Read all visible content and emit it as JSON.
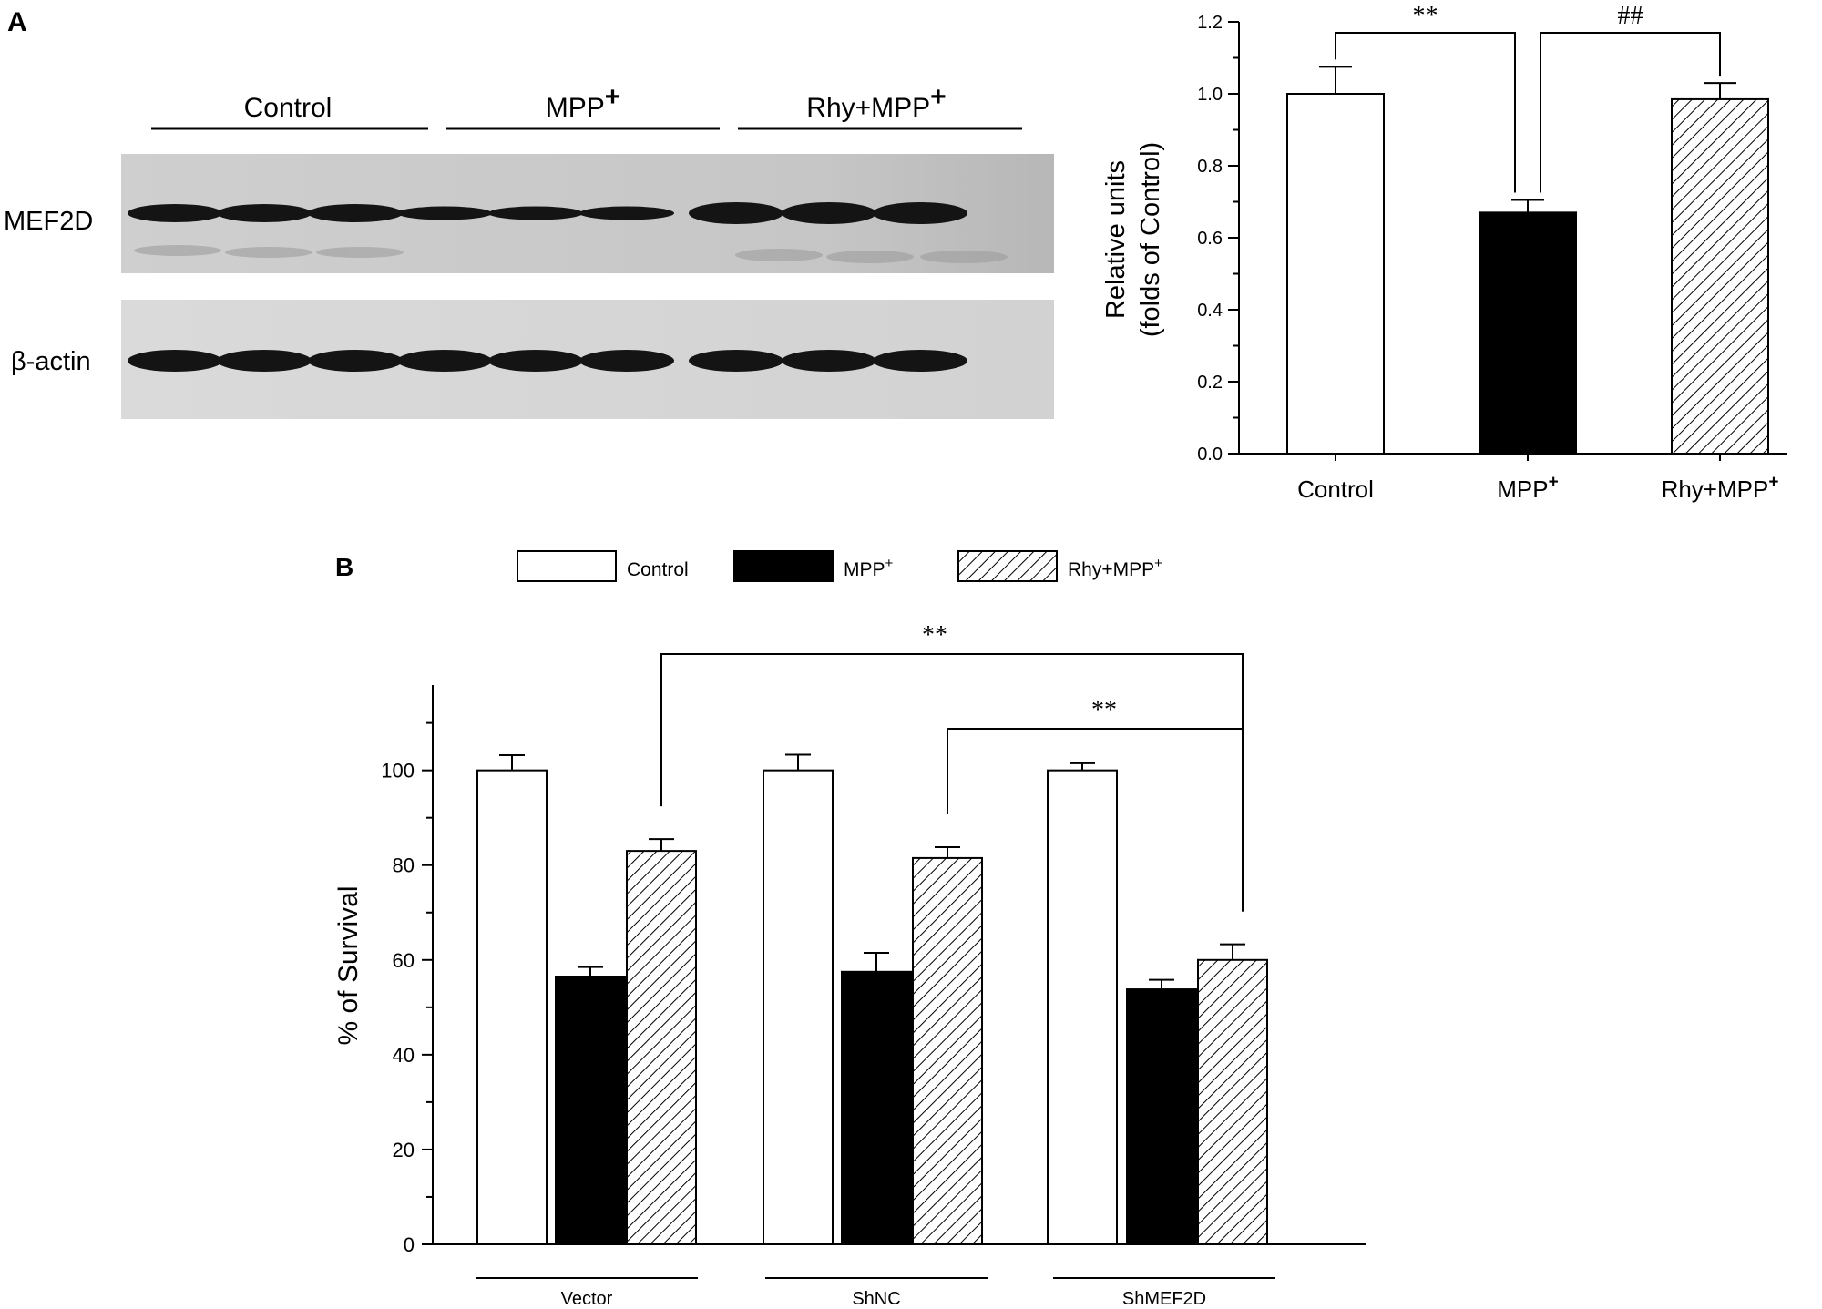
{
  "panel_a": {
    "label": "A",
    "blot": {
      "groups": [
        {
          "label": "Control",
          "sup": ""
        },
        {
          "label": "MPP",
          "sup": "+"
        },
        {
          "label": "Rhy+MPP",
          "sup": "+"
        }
      ],
      "rows": [
        {
          "label": "MEF2D",
          "lanes_per_group": 3
        },
        {
          "label": "β-actin",
          "lanes_per_group": 3
        }
      ]
    }
  },
  "panel_b": {
    "label": "B",
    "legend": [
      {
        "label": "Control",
        "sup": ""
      },
      {
        "label": "MPP",
        "sup": "+"
      },
      {
        "label": "Rhy+MPP",
        "sup": "+"
      }
    ]
  },
  "chart_data": [
    {
      "id": "panel-a-bar",
      "type": "bar",
      "categories": [
        {
          "label": "Control",
          "sup": ""
        },
        {
          "label": "MPP",
          "sup": "+"
        },
        {
          "label": "Rhy+MPP",
          "sup": "+"
        }
      ],
      "values": [
        1.0,
        0.67,
        0.985
      ],
      "errors": [
        0.075,
        0.035,
        0.045
      ],
      "fills": [
        "white",
        "black",
        "hatch"
      ],
      "ylabel_lines": [
        "Relative units",
        "(folds of Control)"
      ],
      "ylim": [
        0,
        1.2
      ],
      "yticks": [
        "0.0",
        "0.2",
        "0.4",
        "0.6",
        "0.8",
        "1.0",
        "1.2"
      ],
      "annotations": [
        {
          "text": "**",
          "from": 0,
          "to": 1
        },
        {
          "text": "##",
          "from": 1,
          "to": 2
        }
      ]
    },
    {
      "id": "panel-b-bar",
      "type": "bar",
      "groups": [
        "Vector",
        "ShNC",
        "ShMEF2D"
      ],
      "series": [
        {
          "name": "Control",
          "values": [
            100,
            100,
            100
          ],
          "errors": [
            3.2,
            3.3,
            1.5
          ],
          "fill": "white"
        },
        {
          "name": "MPP+",
          "values": [
            56.5,
            57.5,
            53.8
          ],
          "errors": [
            2.0,
            4.0,
            2.0
          ],
          "fill": "black"
        },
        {
          "name": "Rhy+MPP+",
          "values": [
            83.0,
            81.5,
            60.0
          ],
          "errors": [
            2.5,
            2.3,
            3.3
          ],
          "fill": "hatch"
        }
      ],
      "ylabel": "% of Survival",
      "ylim": [
        0,
        118
      ],
      "yticks": [
        "0",
        "20",
        "40",
        "60",
        "80",
        "100"
      ],
      "grid": false,
      "legend_position": "top",
      "annotations": [
        {
          "text": "**",
          "from_group": 0,
          "to_group": 2,
          "series": 2
        },
        {
          "text": "**",
          "from_group": 1,
          "to_group": 2,
          "series": 2
        }
      ]
    }
  ]
}
